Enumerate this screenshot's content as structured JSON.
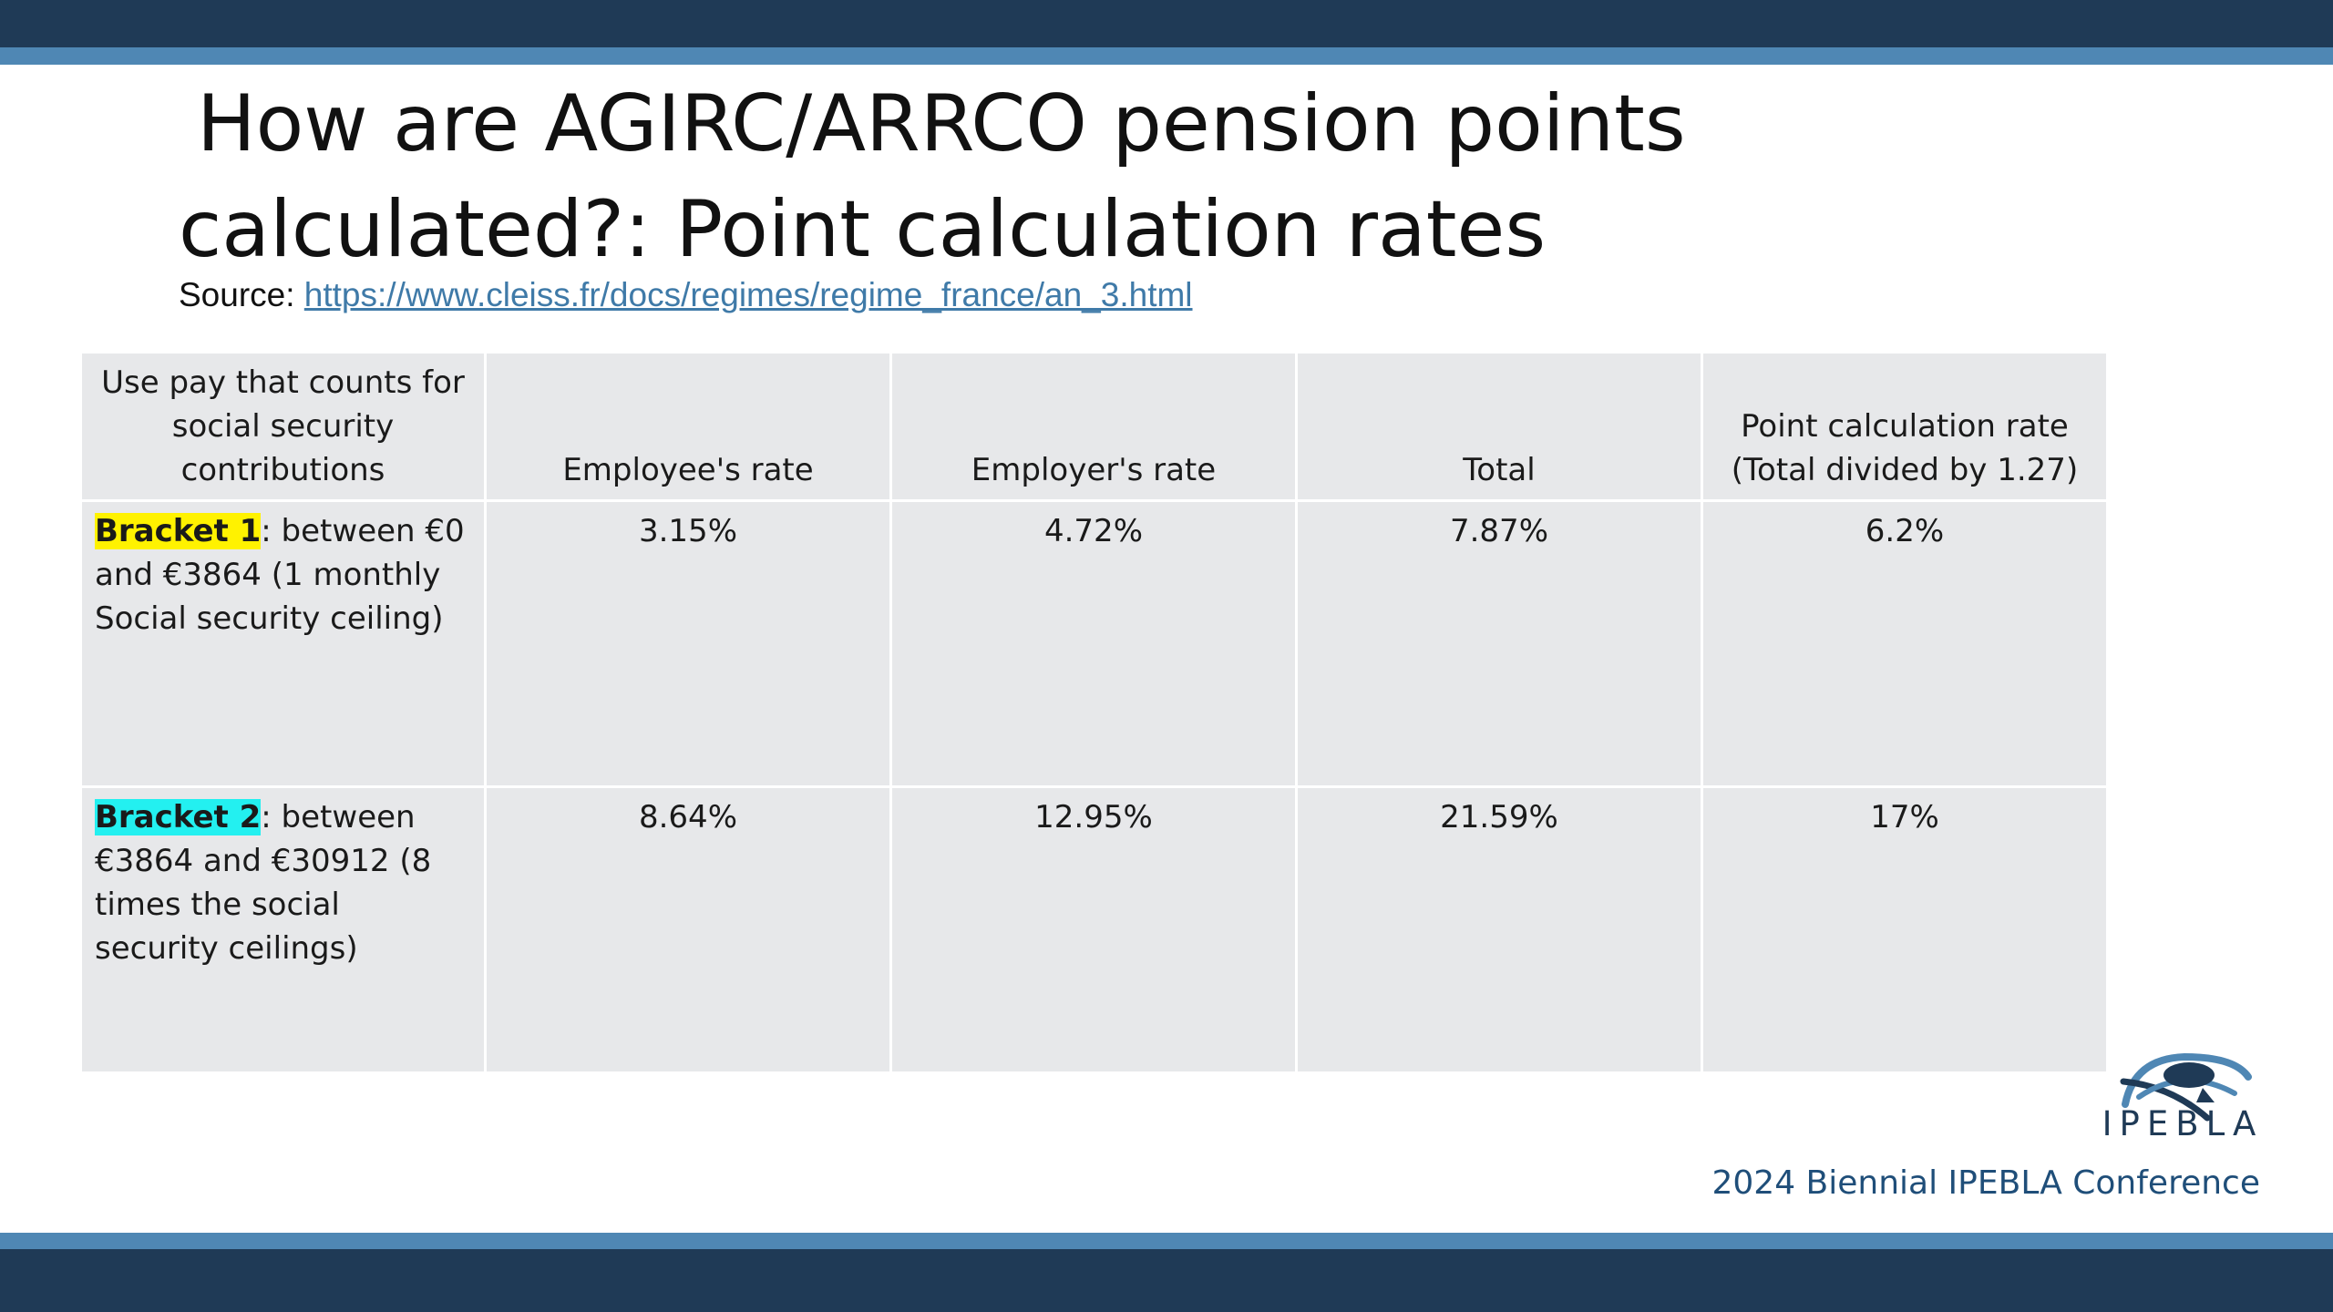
{
  "slide": {
    "title_line1": "How are AGIRC/ARRCO pension points",
    "title_line2": "calculated?: Point calculation rates",
    "source_label": "Source: ",
    "source_url": "https://www.cleiss.fr/docs/regimes/regime_france/an_3.html"
  },
  "table": {
    "headers": [
      "Use pay that counts for social security contributions",
      "Employee's rate",
      "Employer's rate",
      "Total",
      "Point calculation rate (Total  divided by 1.27)"
    ],
    "rows": [
      {
        "bracket_label": "Bracket 1",
        "bracket_text": ": between €0 and €3864 (1 monthly Social security ceiling)",
        "employee_rate": "3.15%",
        "employer_rate": "4.72%",
        "total": "7.87%",
        "point_rate": "6.2%"
      },
      {
        "bracket_label": "Bracket 2",
        "bracket_text": ": between €3864 and €30912 (8 times the social security ceilings)",
        "employee_rate": "8.64%",
        "employer_rate": "12.95%",
        "total": "21.59%",
        "point_rate": "17%"
      }
    ]
  },
  "branding": {
    "logo_text": "IPEBLA",
    "footer": "2024 Biennial IPEBLA Conference"
  },
  "colors": {
    "dark_bar": "#1f3a56",
    "light_bar": "#4f87b4",
    "table_bg": "#e7e8ea",
    "bracket1_highlight": "#fff200",
    "bracket2_highlight": "#23f0f0"
  }
}
